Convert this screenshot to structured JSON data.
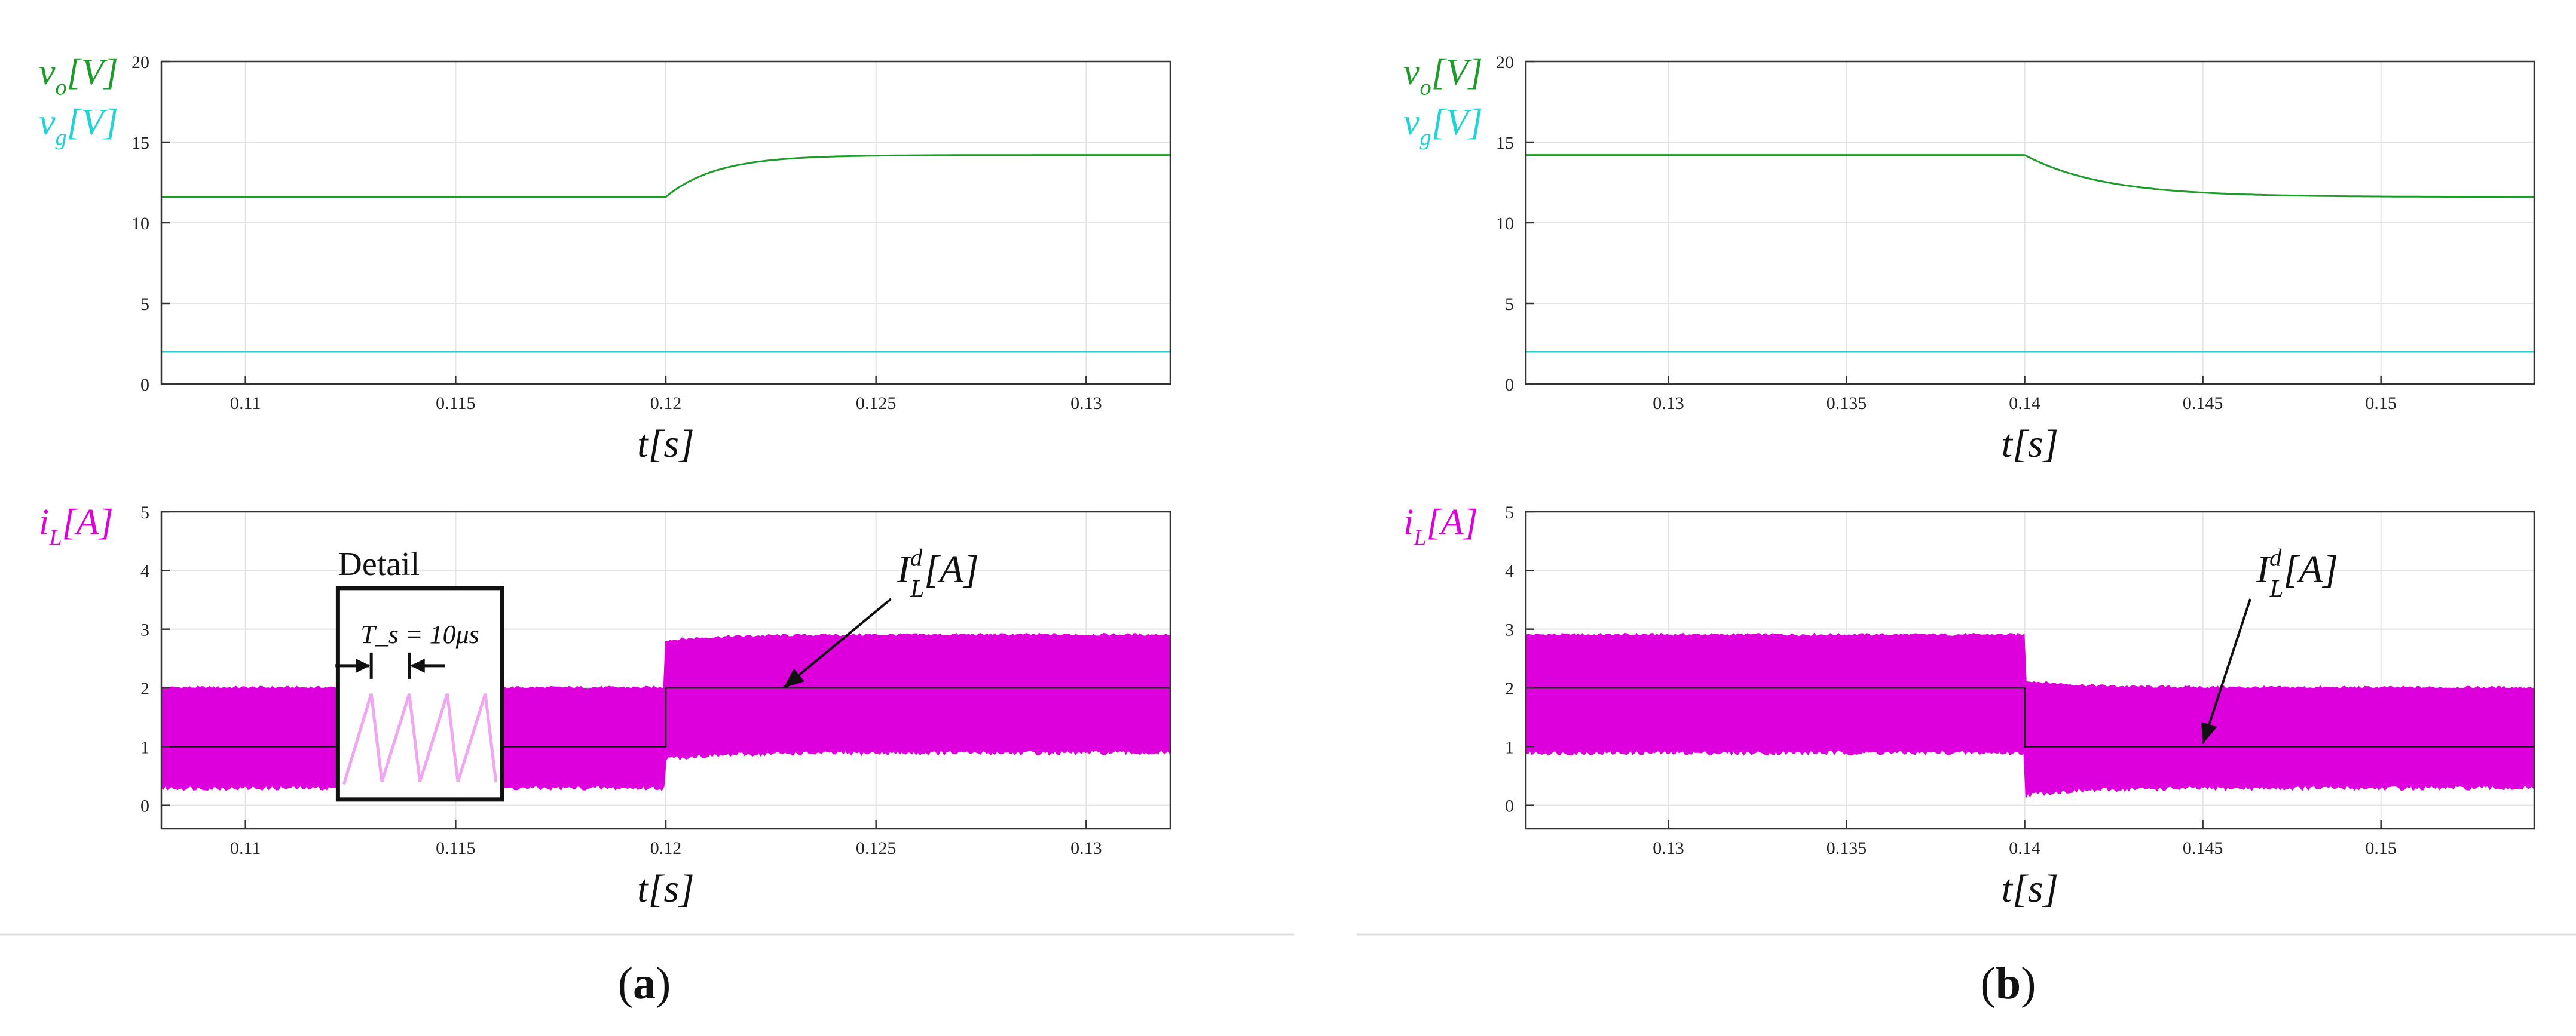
{
  "figure": {
    "colors": {
      "vo": "#1e9b2a",
      "vg": "#1fd3d6",
      "iL": "#dd00dd",
      "detail_wave": "#f0a6f0",
      "grid": "#e3e3e3",
      "axis": "#333333",
      "separator": "#dddddd"
    },
    "panel_labels": [
      "a",
      "b"
    ]
  },
  "chart_data": [
    {
      "id": "a-top",
      "type": "line",
      "xlabel": "t[s]",
      "ylabel_lines": [
        "v_o[V]",
        "v_g[V]"
      ],
      "xlim": [
        0.108,
        0.132
      ],
      "ylim": [
        0,
        20
      ],
      "xticks": [
        0.11,
        0.115,
        0.12,
        0.125,
        0.13
      ],
      "xtick_labels": [
        "0.11",
        "0.115",
        "0.12",
        "0.125",
        "0.13"
      ],
      "yticks": [
        0,
        5,
        10,
        15,
        20
      ],
      "ytick_labels": [
        "0",
        "5",
        "10",
        "15",
        "20"
      ],
      "grid": true,
      "series": [
        {
          "name": "v_o[V]",
          "color_key": "vo",
          "kind": "step_exp",
          "before": 11.6,
          "after": 14.2,
          "t_step": 0.12,
          "tau": 0.0012
        },
        {
          "name": "v_g[V]",
          "color_key": "vg",
          "kind": "constant",
          "value": 2.0
        }
      ]
    },
    {
      "id": "a-bottom",
      "type": "area",
      "xlabel": "t[s]",
      "ylabel_lines": [
        "i_L[A]"
      ],
      "xlim": [
        0.108,
        0.132
      ],
      "ylim": [
        -0.4,
        5
      ],
      "xticks": [
        0.11,
        0.115,
        0.12,
        0.125,
        0.13
      ],
      "xtick_labels": [
        "0.11",
        "0.115",
        "0.12",
        "0.125",
        "0.13"
      ],
      "yticks": [
        0,
        1,
        2,
        3,
        4,
        5
      ],
      "ytick_labels": [
        "0",
        "1",
        "2",
        "3",
        "4",
        "5"
      ],
      "grid": true,
      "ripple_band": {
        "t_step": 0.12,
        "before": [
          0.3,
          2.0
        ],
        "after": [
          0.9,
          2.9
        ],
        "overshoot": 0.1
      },
      "reference": {
        "name": "I_L^d[A]",
        "before": 1.0,
        "after": 2.0
      },
      "annotations": [
        {
          "text": "I_L^d[A]",
          "label_xy": [
            0.1255,
            3.8
          ],
          "arrow_to": [
            0.1228,
            2.0
          ]
        }
      ],
      "detail_box": {
        "title": "Detail",
        "period_label": "T_s = 10μs",
        "t_range": [
          0.1122,
          0.1161
        ],
        "y_range": [
          0.1,
          3.7
        ],
        "sawtooth": {
          "low": 0.4,
          "high": 1.9,
          "periods": 4
        }
      }
    },
    {
      "id": "b-top",
      "type": "line",
      "xlabel": "t[s]",
      "ylabel_lines": [
        "v_o[V]",
        "v_g[V]"
      ],
      "xlim": [
        0.126,
        0.1543
      ],
      "ylim": [
        0,
        20
      ],
      "xticks": [
        0.13,
        0.135,
        0.14,
        0.145,
        0.15
      ],
      "xtick_labels": [
        "0.13",
        "0.135",
        "0.14",
        "0.145",
        "0.15"
      ],
      "yticks": [
        0,
        5,
        10,
        15,
        20
      ],
      "ytick_labels": [
        "0",
        "5",
        "10",
        "15",
        "20"
      ],
      "grid": true,
      "series": [
        {
          "name": "v_o[V]",
          "color_key": "vo",
          "kind": "step_exp",
          "before": 14.2,
          "after": 11.6,
          "t_step": 0.14,
          "tau": 0.0022
        },
        {
          "name": "v_g[V]",
          "color_key": "vg",
          "kind": "constant",
          "value": 2.0
        }
      ]
    },
    {
      "id": "b-bottom",
      "type": "area",
      "xlabel": "t[s]",
      "ylabel_lines": [
        "i_L[A]"
      ],
      "xlim": [
        0.126,
        0.1543
      ],
      "ylim": [
        -0.4,
        5
      ],
      "xticks": [
        0.13,
        0.135,
        0.14,
        0.145,
        0.15
      ],
      "xtick_labels": [
        "0.13",
        "0.135",
        "0.14",
        "0.145",
        "0.15"
      ],
      "yticks": [
        0,
        1,
        2,
        3,
        4,
        5
      ],
      "ytick_labels": [
        "0",
        "1",
        "2",
        "3",
        "4",
        "5"
      ],
      "grid": true,
      "ripple_band": {
        "t_step": 0.14,
        "before": [
          0.9,
          2.9
        ],
        "after": [
          0.3,
          2.0
        ],
        "overshoot": 0.12
      },
      "reference": {
        "name": "I_L^d[A]",
        "before": 2.0,
        "after": 1.0
      },
      "annotations": [
        {
          "text": "I_L^d[A]",
          "label_xy": [
            0.1465,
            3.8
          ],
          "arrow_to": [
            0.145,
            1.05
          ]
        }
      ]
    }
  ]
}
